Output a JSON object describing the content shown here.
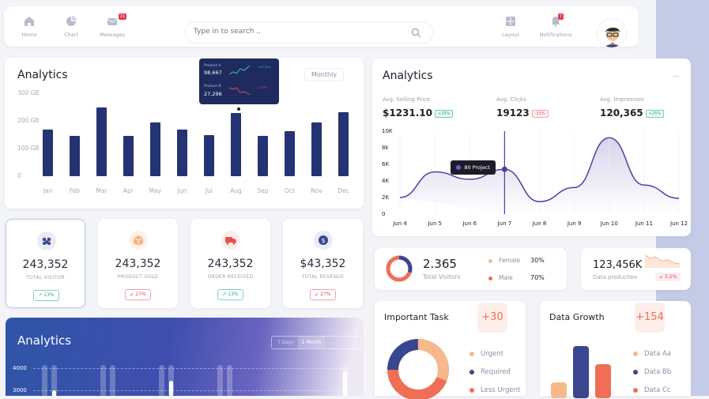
{
  "nav": {
    "items": [
      {
        "label": "Home",
        "icon": "home-icon"
      },
      {
        "label": "Chart",
        "icon": "chart-icon"
      },
      {
        "label": "Messages",
        "icon": "messages-icon",
        "badge": "11"
      }
    ],
    "search_placeholder": "Type in to search ..",
    "right_items": [
      {
        "label": "Layout",
        "icon": "layout-icon"
      },
      {
        "label": "Notifications",
        "icon": "bell-icon",
        "badge": "7"
      }
    ]
  },
  "left_analytics": {
    "title": "Analytics",
    "period": "Monthly",
    "tooltip": {
      "row1_label": "Product A",
      "row1_value": "98,667",
      "row1_change": "+15.37%",
      "row2_label": "Product B",
      "row2_value": "27,296",
      "row2_change": "-0.37%"
    }
  },
  "chart_data": [
    {
      "type": "bar",
      "title": "Analytics",
      "categories": [
        "Jan",
        "Feb",
        "Mar",
        "Apr",
        "May",
        "Jun",
        "Jul",
        "Aug",
        "Sep",
        "Oct",
        "Nov",
        "Dec"
      ],
      "values": [
        170,
        145,
        248,
        146,
        195,
        170,
        150,
        230,
        146,
        164,
        195,
        232
      ],
      "ylim": [
        0,
        300
      ],
      "yticks": [
        "300 GB",
        "200 GB",
        "100 GB",
        "0"
      ]
    },
    {
      "type": "line",
      "title": "Analytics",
      "x": [
        "Jun 4",
        "Jun 5",
        "Jun 6",
        "Jun 7",
        "Jun 8",
        "Jun 9",
        "Jun 10",
        "Jun 11",
        "Jun 12"
      ],
      "values": [
        2000,
        5100,
        4200,
        5400,
        1500,
        3200,
        9200,
        3500,
        1900
      ],
      "ylim": [
        0,
        10000
      ],
      "yticks": [
        "10K",
        "8k",
        "6K",
        "4K",
        "2K",
        "0"
      ],
      "tooltip": "80 Project"
    }
  ],
  "stats": [
    {
      "value": "243,352",
      "label": "TOTAL VISITOR",
      "change": "13%",
      "dir": "up",
      "color": "#3b4690",
      "bg": "#e9ecf7"
    },
    {
      "value": "243,352",
      "label": "PRODUCT SOLD",
      "change": "27%",
      "dir": "down",
      "color": "#f5b384",
      "bg": "#fdf1e8"
    },
    {
      "value": "243,352",
      "label": "ORDER RECEIVED",
      "change": "13%",
      "dir": "up",
      "color": "#e9504f",
      "bg": "#fdecec"
    },
    {
      "value": "$43,352",
      "label": "TOTAL REVENUE",
      "change": "27%",
      "dir": "down",
      "color": "#3b4690",
      "bg": "#e9ecf7"
    }
  ],
  "right_analytics": {
    "title": "Analytics",
    "menu": "...",
    "kpis": [
      {
        "label": "Avg. Selling Price",
        "value": "$1231.10",
        "tag": "+25%",
        "kind": "g"
      },
      {
        "label": "Avg. Clicks",
        "value": "19123",
        "tag": "-31%",
        "kind": "r"
      },
      {
        "label": "Avg. Impression",
        "value": "120,365",
        "tag": "+25%",
        "kind": "g"
      }
    ]
  },
  "visitors": {
    "value": "2.365",
    "label": "Total Visitors",
    "female_label": "Female",
    "female_pct": "30%",
    "male_label": "Male",
    "male_pct": "70%"
  },
  "production": {
    "value": "123,456K",
    "label": "Data production",
    "change": "3.2%"
  },
  "bottom_analytics": {
    "title": "Analytics",
    "tabs": [
      "7 Days",
      "1 Month",
      ""
    ],
    "yticks": [
      "4000",
      "3000"
    ]
  },
  "important_task": {
    "title": "Important Task",
    "badge": "+30",
    "legend": [
      {
        "label": "Urgent",
        "color": "#f7b98b"
      },
      {
        "label": "Required",
        "color": "#3b4690"
      },
      {
        "label": "Less Urgent",
        "color": "#ee6f56"
      }
    ]
  },
  "data_growth": {
    "title": "Data Growth",
    "badge": "+154",
    "legend": [
      {
        "label": "Data Aa",
        "color": "#f7b98b"
      },
      {
        "label": "Data Bb",
        "color": "#3b4690"
      },
      {
        "label": "Data Cc",
        "color": "#ee6f56"
      }
    ]
  }
}
